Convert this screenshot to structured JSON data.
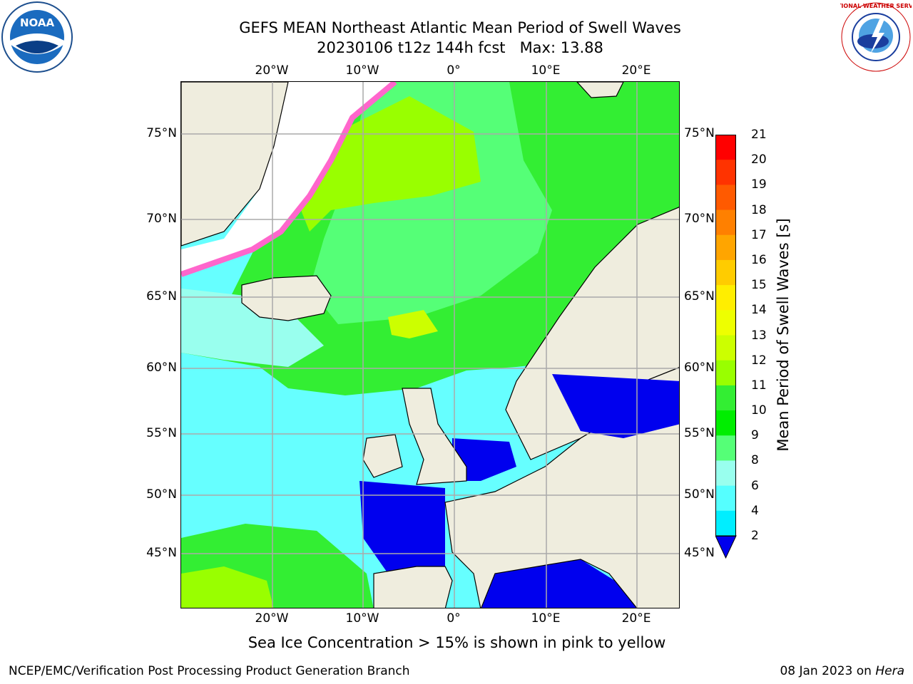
{
  "header": {
    "title_line1": "GEFS MEAN Northeast Atlantic Mean Period of Swell Waves",
    "title_line2": "20230106 t12z 144h fcst   Max: 13.88"
  },
  "logos": {
    "noaa": {
      "icon": "noaa-logo",
      "text": "NOAA"
    },
    "nws": {
      "icon": "nws-logo",
      "text": "NATIONAL WEATHER SERVICE"
    }
  },
  "map": {
    "lon_ticks": [
      "20°W",
      "10°W",
      "0°",
      "10°E",
      "20°E"
    ],
    "lat_ticks": [
      "75°N",
      "70°N",
      "65°N",
      "60°N",
      "55°N",
      "50°N",
      "45°N"
    ],
    "land_color": "#efedde",
    "ocean_color": "#66ffff",
    "ice_color": "#ff66cc"
  },
  "colorbar": {
    "label": "Mean Period of Swell Waves [s]",
    "ticks": [
      "21",
      "20",
      "19",
      "18",
      "17",
      "16",
      "15",
      "14",
      "13",
      "12",
      "11",
      "10",
      "9",
      "8",
      "6",
      "4",
      "2"
    ],
    "colors": [
      "#ff0000",
      "#ff3300",
      "#ff5a00",
      "#ff8000",
      "#ffa500",
      "#ffcc00",
      "#ffee00",
      "#eeff00",
      "#ccff00",
      "#99ff00",
      "#33ee33",
      "#00ee00",
      "#55ff77",
      "#99ffee",
      "#55ffff",
      "#00eeff",
      "#0077ff"
    ],
    "extend_color": "#0000ee"
  },
  "note": "Sea Ice Concentration > 15% is shown in pink to yellow",
  "footer": {
    "left": "NCEP/EMC/Verification Post Processing Product Generation Branch",
    "date": "08 Jan 2023 on ",
    "machine": "Hera"
  }
}
